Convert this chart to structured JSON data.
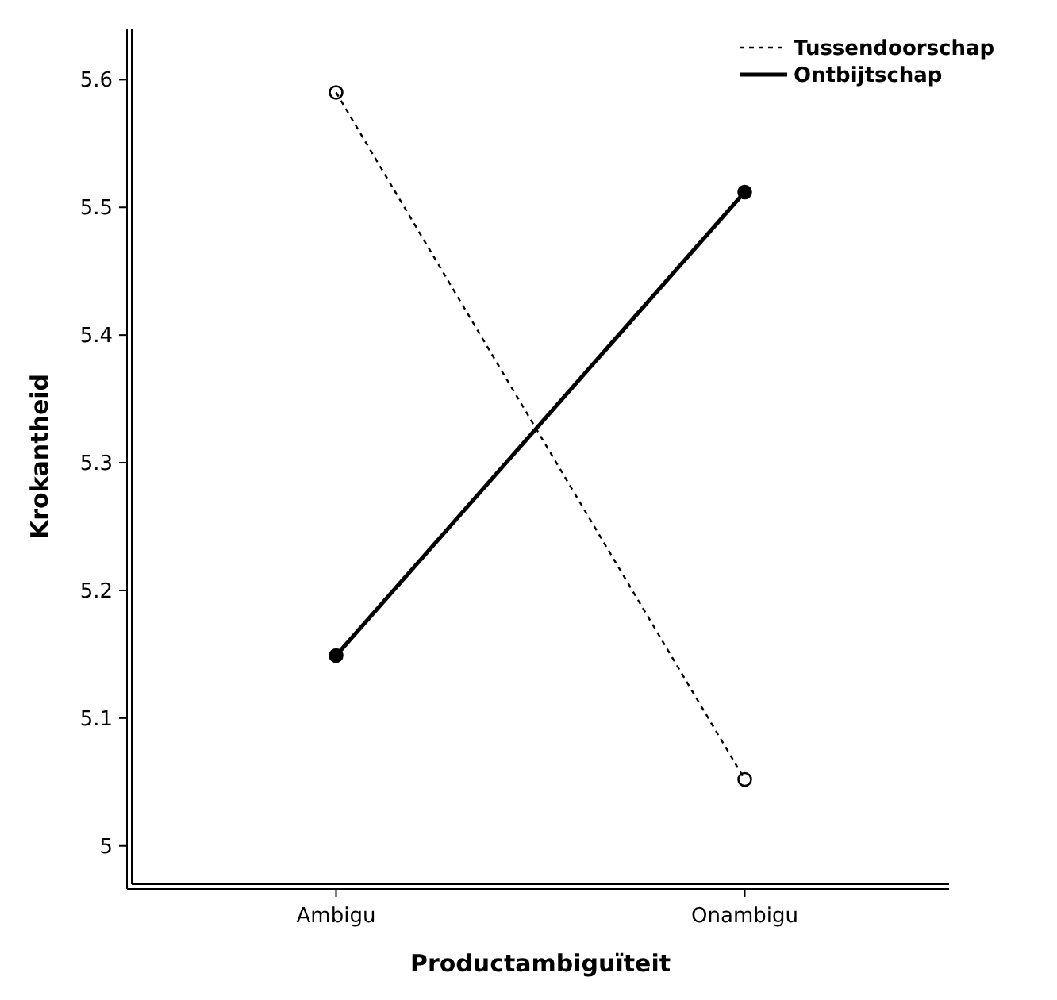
{
  "chart_data": {
    "type": "line",
    "xlabel": "Productambiguïteit",
    "ylabel": "Krokantheid",
    "categories": [
      "Ambigu",
      "Onambigu"
    ],
    "series": [
      {
        "name": "Tussendoorschap",
        "color": "#000000",
        "values": [
          5.59,
          5.052
        ],
        "line_style": "dotted",
        "marker": "circle"
      },
      {
        "name": "Ontbijtschap",
        "color": "#000000",
        "values": [
          5.149,
          5.512
        ],
        "line_style": "solid",
        "marker": "circle"
      }
    ],
    "ylim": [
      4.97,
      5.64
    ],
    "yticks": [
      5,
      5.1,
      5.2,
      5.3,
      5.4,
      5.5,
      5.6
    ],
    "grid": false,
    "legend": "top right"
  }
}
